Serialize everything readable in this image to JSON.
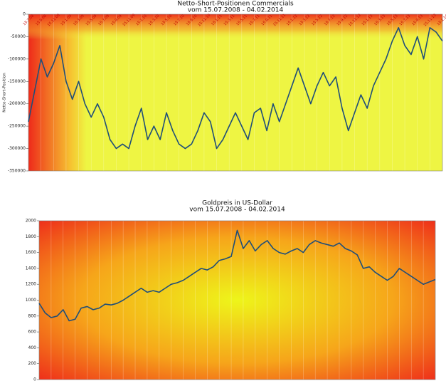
{
  "chart_data": [
    {
      "type": "line",
      "title": "Netto-Short-Positionen  Commercials",
      "subtitle": "vom 15.07.2008 - 04.02.2014",
      "y_label": "Netto-Short-Position",
      "categories": [
        "15.7.08",
        null,
        "15.9.08",
        null,
        "15.11.08",
        null,
        "15.1.09",
        null,
        "15.3.09",
        null,
        "15.5.09",
        null,
        "15.7.09",
        null,
        "15.9.09",
        null,
        "15.11.09",
        null,
        "15.1.10",
        null,
        "15.3.10",
        null,
        "15.5.10",
        null,
        "15.7.10",
        null,
        "15.9.10",
        null,
        "15.11.10",
        null,
        "15.1.11",
        null,
        "15.3.11",
        null,
        "15.5.11",
        null,
        "15.7.11",
        null,
        "15.9.11",
        null,
        "15.11.11",
        null,
        "15.1.12",
        null,
        "15.3.12",
        null,
        "15.5.12",
        null,
        "15.7.12",
        null,
        "15.9.12",
        null,
        "15.11.12",
        null,
        "15.1.13",
        null,
        "15.3.13",
        null,
        "15.5.13",
        null,
        "15.7.13",
        null,
        "15.9.13",
        null,
        "15.11.13",
        null,
        "15.1.14"
      ],
      "series": [
        {
          "name": "Netto-Short-Position",
          "color": "#1f4e79",
          "values": [
            -240000,
            -170000,
            -100000,
            -140000,
            -110000,
            -70000,
            -150000,
            -190000,
            -150000,
            -200000,
            -230000,
            -200000,
            -230000,
            -280000,
            -300000,
            -290000,
            -300000,
            -250000,
            -210000,
            -280000,
            -250000,
            -280000,
            -220000,
            -260000,
            -290000,
            -300000,
            -290000,
            -260000,
            -220000,
            -240000,
            -300000,
            -280000,
            -250000,
            -220000,
            -250000,
            -280000,
            -220000,
            -210000,
            -260000,
            -200000,
            -240000,
            -200000,
            -160000,
            -120000,
            -160000,
            -200000,
            -160000,
            -130000,
            -160000,
            -140000,
            -210000,
            -260000,
            -220000,
            -180000,
            -210000,
            -160000,
            -130000,
            -100000,
            -60000,
            -30000,
            -70000,
            -90000,
            -50000,
            -100000,
            -30000,
            -40000,
            -60000
          ]
        }
      ],
      "ylim": [
        -350000,
        0
      ],
      "yticks": [
        0,
        -50000,
        -100000,
        -150000,
        -200000,
        -250000,
        -300000,
        -350000
      ],
      "background": "corner"
    },
    {
      "type": "line",
      "title": "Goldpreis in US-Dollar",
      "subtitle": "vom 15.07.2008 - 04.02.2014",
      "series": [
        {
          "name": "Goldpreis",
          "color": "#1f4e79",
          "values": [
            960,
            840,
            780,
            800,
            880,
            740,
            760,
            900,
            920,
            880,
            900,
            950,
            940,
            960,
            1000,
            1050,
            1100,
            1150,
            1100,
            1120,
            1100,
            1150,
            1200,
            1220,
            1250,
            1300,
            1350,
            1400,
            1380,
            1420,
            1500,
            1520,
            1550,
            1880,
            1650,
            1750,
            1620,
            1700,
            1750,
            1650,
            1600,
            1580,
            1620,
            1650,
            1600,
            1700,
            1750,
            1720,
            1700,
            1680,
            1720,
            1650,
            1620,
            1570,
            1400,
            1420,
            1350,
            1300,
            1250,
            1300,
            1400,
            1350,
            1300,
            1250,
            1200,
            1230,
            1260
          ]
        }
      ],
      "ylim": [
        0,
        2000
      ],
      "yticks": [
        0,
        200,
        400,
        600,
        800,
        1000,
        1200,
        1400,
        1600,
        1800,
        2000
      ],
      "background": "radial"
    }
  ]
}
